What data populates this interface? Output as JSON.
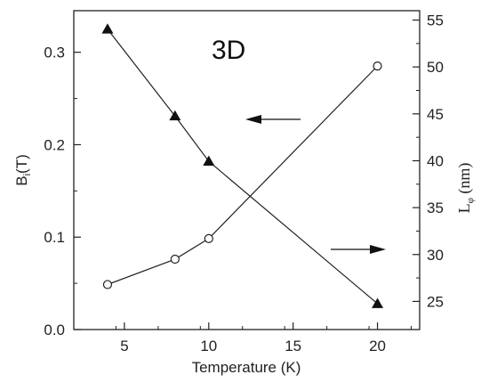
{
  "chart_data": {
    "type": "line",
    "panel_label": "3D",
    "xlabel": "Temperature (K)",
    "ylabel_left": {
      "main": "B",
      "sub": "i",
      "rest": "(T)"
    },
    "ylabel_right": {
      "main": "L",
      "sub": "φ",
      "rest": " (nm)"
    },
    "xlim": [
      2.0,
      22.5
    ],
    "ylim_left": [
      0.0,
      0.345
    ],
    "ylim_right": [
      22.0,
      56.0
    ],
    "x_ticks": [
      5,
      10,
      15,
      20
    ],
    "y_left_ticks": [
      "0.0",
      "0.1",
      "0.2",
      "0.3"
    ],
    "y_right_ticks": [
      25,
      30,
      35,
      40,
      45,
      50,
      55
    ],
    "grid": false,
    "series": [
      {
        "axis": "left",
        "marker": "filled-triangle",
        "x": [
          4,
          8,
          10,
          20
        ],
        "y": [
          0.325,
          0.231,
          0.182,
          0.028
        ]
      },
      {
        "axis": "right",
        "marker": "open-circle",
        "x": [
          4,
          8,
          10,
          20
        ],
        "y": [
          26.8,
          29.5,
          31.7,
          50.1
        ]
      }
    ],
    "annotations": [
      {
        "type": "arrow",
        "direction": "left",
        "meaning": "left axis series"
      },
      {
        "type": "arrow",
        "direction": "right",
        "meaning": "right axis series"
      }
    ]
  }
}
